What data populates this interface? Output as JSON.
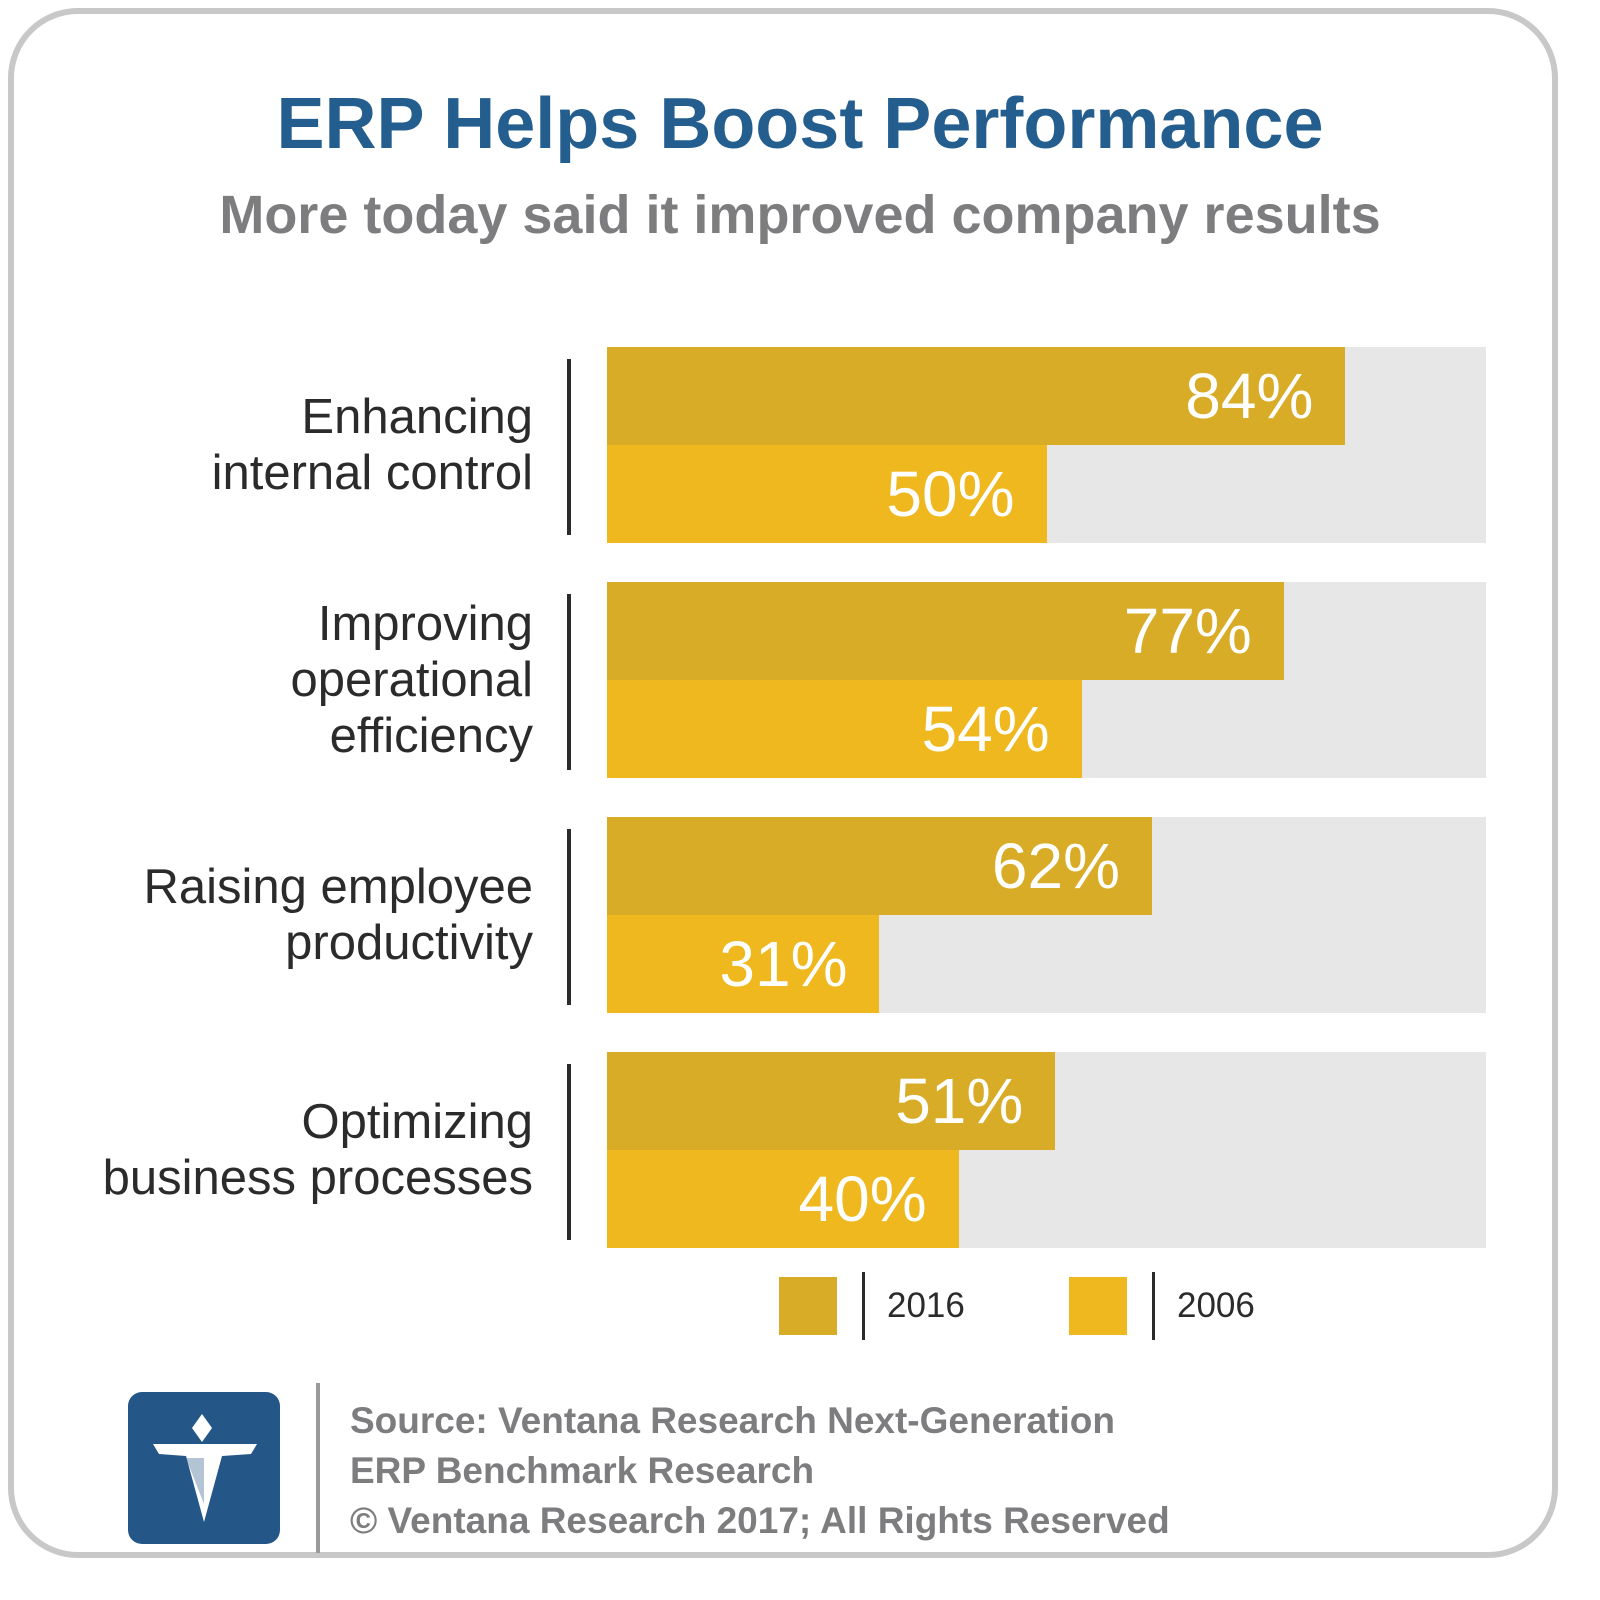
{
  "title": "ERP Helps Boost Performance",
  "subtitle": "More today said it improved company results",
  "colors": {
    "series_2016": "#d9ac27",
    "series_2006": "#efb81f",
    "track": "#e6e7e6",
    "title": "#245e8f",
    "subtitle": "#7d7d7f"
  },
  "chart_data": {
    "type": "bar",
    "orientation": "horizontal",
    "title": "ERP Helps Boost Performance",
    "subtitle": "More today said it improved company results",
    "categories": [
      "Enhancing internal control",
      "Improving operational efficiency",
      "Raising employee productivity",
      "Optimizing business processes"
    ],
    "category_lines": [
      "Enhancing\ninternal control",
      "Improving\noperational\nefficiency",
      "Raising employee\nproductivity",
      "Optimizing\nbusiness processes"
    ],
    "series": [
      {
        "name": "2016",
        "values": [
          84,
          77,
          62,
          51
        ],
        "labels": [
          "84%",
          "77%",
          "62%",
          "51%"
        ]
      },
      {
        "name": "2006",
        "values": [
          50,
          54,
          31,
          40
        ],
        "labels": [
          "50%",
          "54%",
          "31%",
          "40%"
        ]
      }
    ],
    "xlim": [
      0,
      100
    ],
    "unit": "%",
    "legend": "bottom",
    "grid": false
  },
  "legend": {
    "items": [
      "2016",
      "2006"
    ]
  },
  "footer": {
    "source_lines": [
      "Source: Ventana Research Next-Generation",
      "ERP Benchmark Research",
      "© Ventana Research 2017; All Rights Reserved"
    ],
    "logo_icon": "ventana-v-logo-icon"
  }
}
